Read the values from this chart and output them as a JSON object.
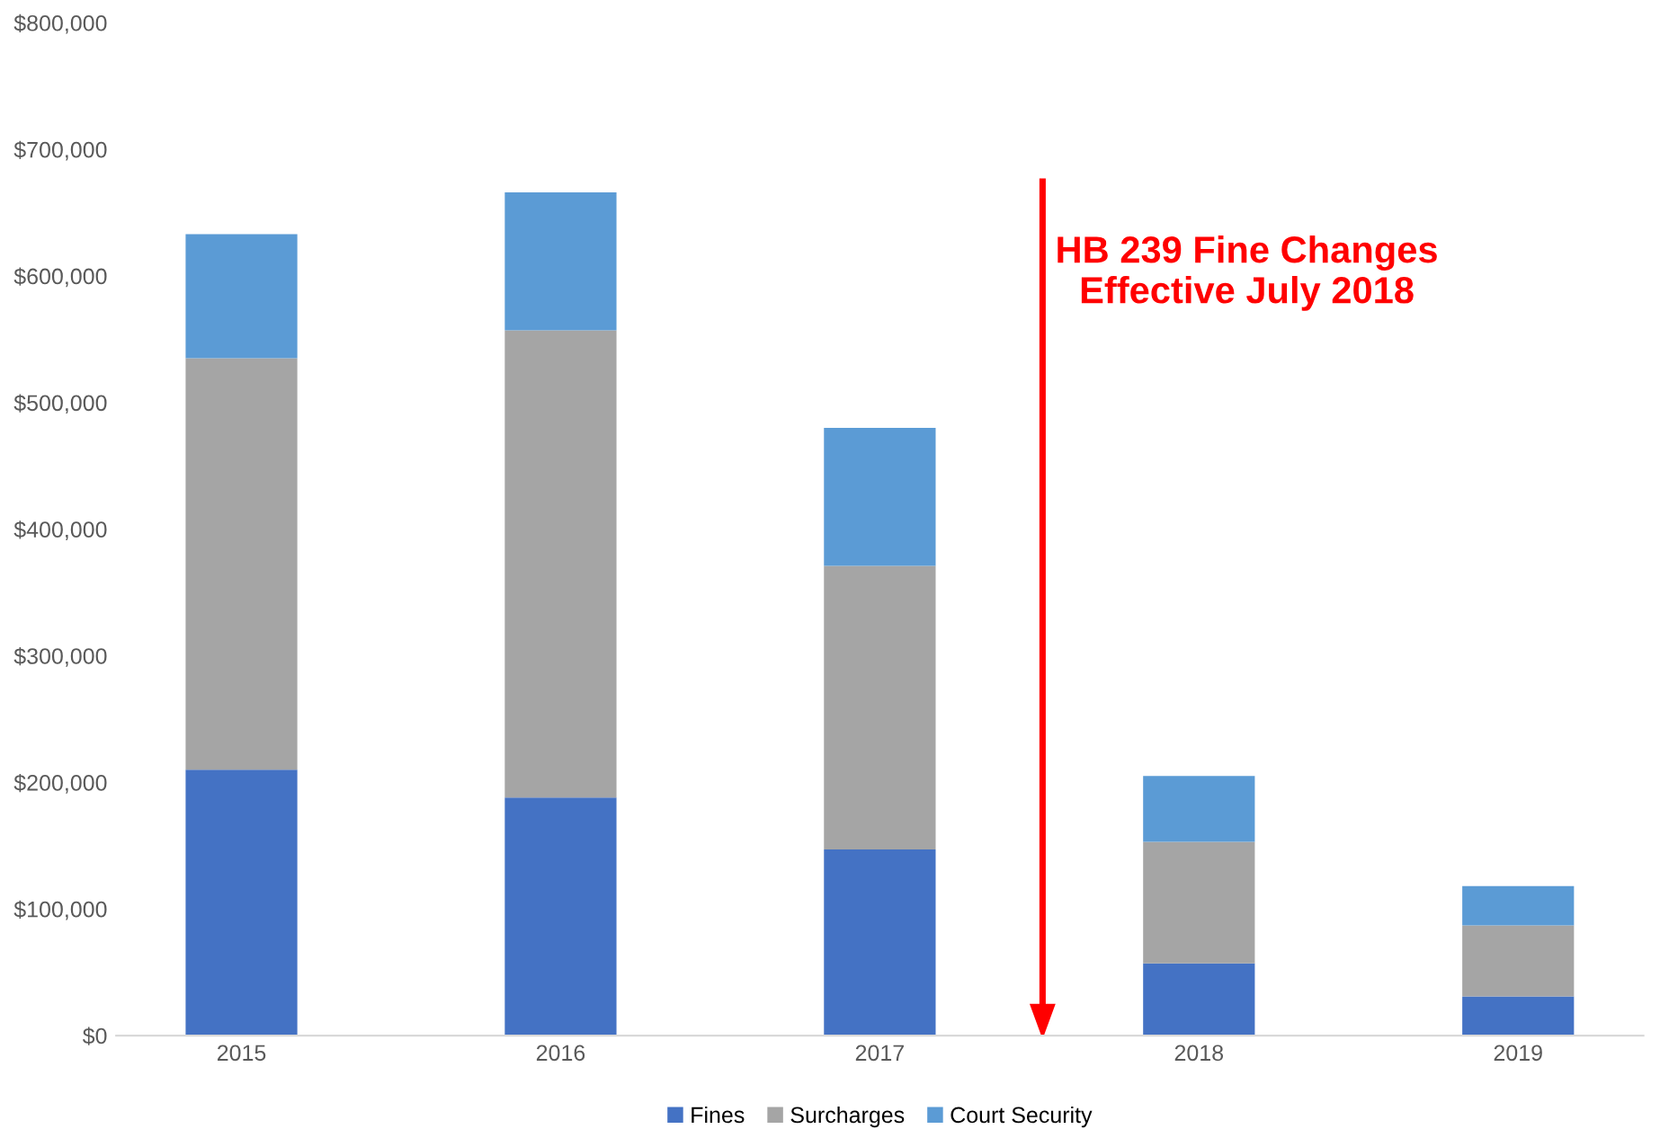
{
  "chart_data": {
    "type": "bar",
    "stacked": true,
    "categories": [
      "2015",
      "2016",
      "2017",
      "2018",
      "2019"
    ],
    "series": [
      {
        "name": "Fines",
        "color": "#4472c4",
        "values": [
          210000,
          188000,
          147000,
          57000,
          31000
        ]
      },
      {
        "name": "Surcharges",
        "color": "#a5a5a5",
        "values": [
          325000,
          369000,
          224000,
          96000,
          56000
        ]
      },
      {
        "name": "Court Security",
        "color": "#5b9bd5",
        "values": [
          98000,
          109000,
          109000,
          52000,
          31000
        ]
      }
    ],
    "ylim": [
      0,
      800000
    ],
    "yticks": [
      {
        "value": 0,
        "label": "$0"
      },
      {
        "value": 100000,
        "label": "$100,000"
      },
      {
        "value": 200000,
        "label": "$200,000"
      },
      {
        "value": 300000,
        "label": "$300,000"
      },
      {
        "value": 400000,
        "label": "$400,000"
      },
      {
        "value": 500000,
        "label": "$500,000"
      },
      {
        "value": 600000,
        "label": "$600,000"
      },
      {
        "value": 700000,
        "label": "$700,000"
      },
      {
        "value": 800000,
        "label": "$800,000"
      }
    ],
    "annotations": [
      "HB 239 Fine Changes\nEffective July 2018"
    ],
    "grid": false,
    "legend": "bottom"
  }
}
